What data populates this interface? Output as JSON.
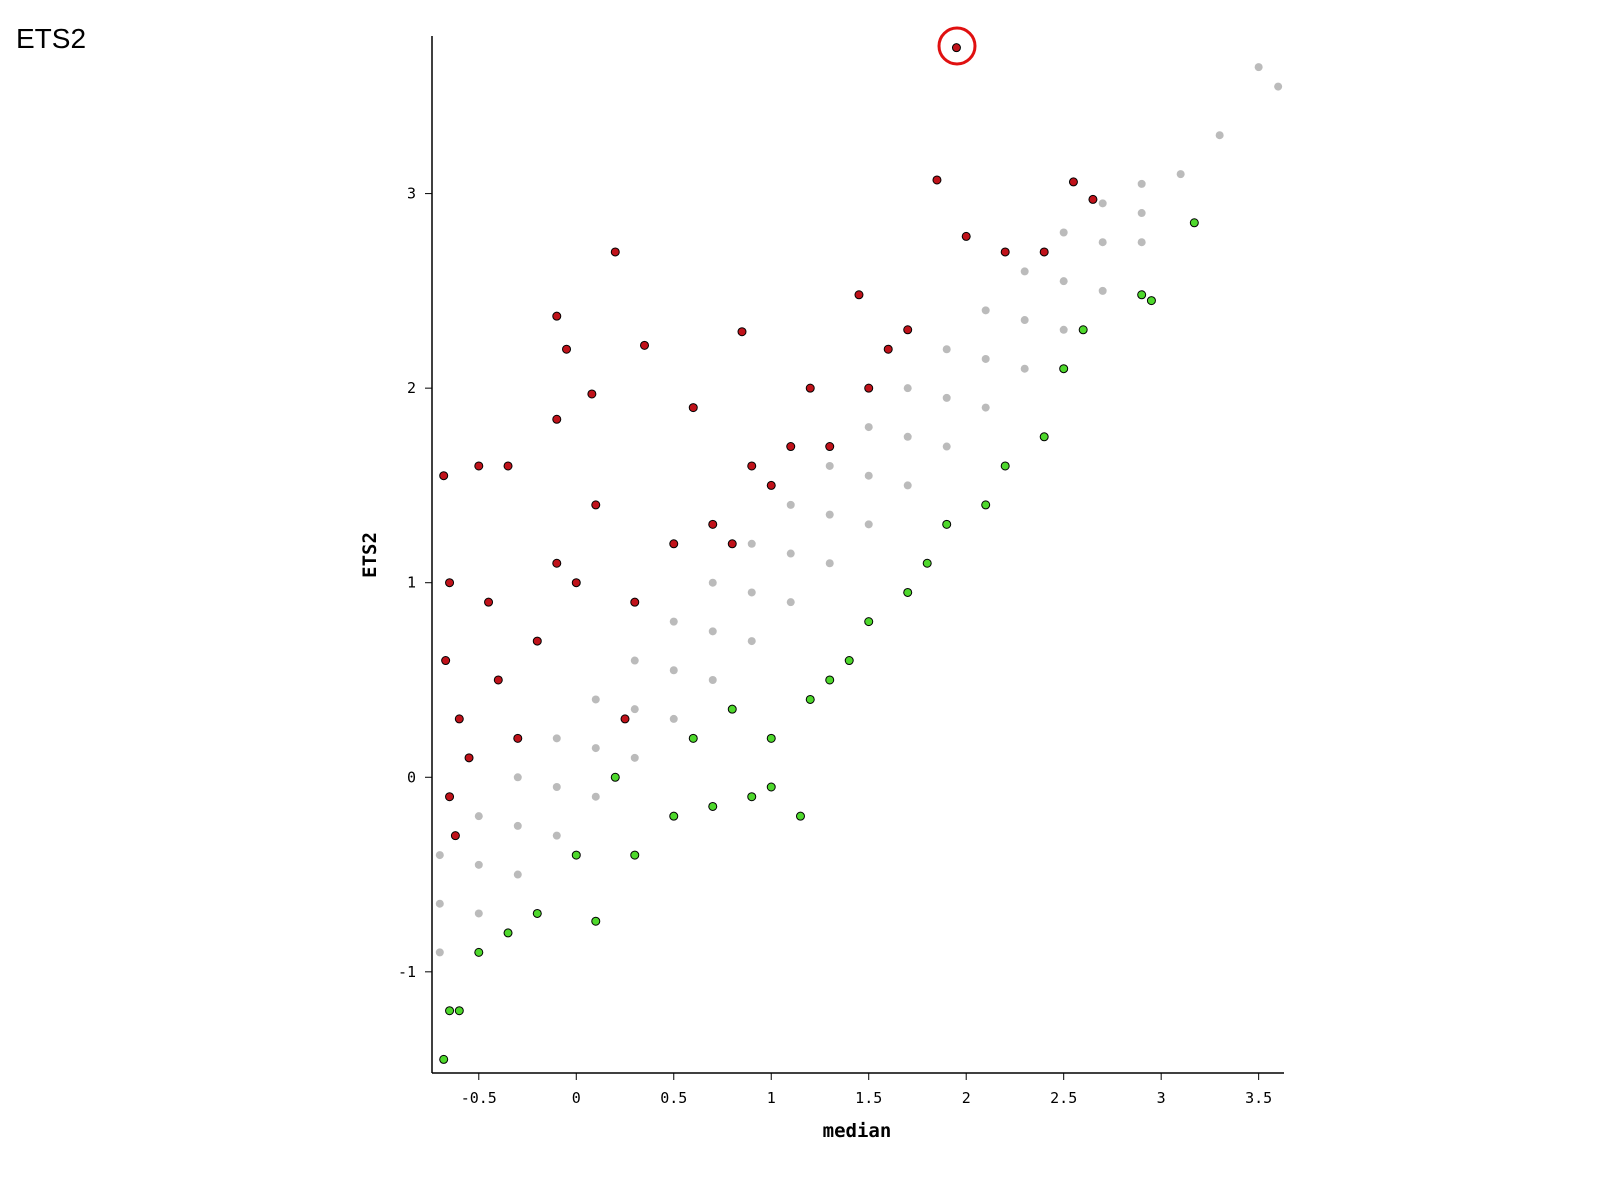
{
  "chart_data": {
    "type": "scatter",
    "title": "ETS2",
    "xlabel": "median",
    "ylabel": "ETS2",
    "xlim": [
      -0.74,
      3.63
    ],
    "ylim": [
      -1.52,
      3.81
    ],
    "xticks": [
      -0.5,
      0,
      0.5,
      1,
      1.5,
      2,
      2.5,
      3,
      3.5
    ],
    "yticks": [
      -1,
      0,
      1,
      2,
      3
    ],
    "series": [
      {
        "color": "#bbbbbb",
        "x": [
          -0.7,
          -0.7,
          -0.7,
          -0.5,
          -0.5,
          -0.5,
          -0.3,
          -0.3,
          -0.3,
          -0.1,
          -0.1,
          -0.1,
          0.1,
          0.1,
          0.1,
          0.3,
          0.3,
          0.3,
          0.5,
          0.5,
          0.5,
          0.7,
          0.7,
          0.7,
          0.9,
          0.9,
          0.9,
          1.1,
          1.1,
          1.1,
          1.3,
          1.3,
          1.3,
          1.5,
          1.5,
          1.5,
          1.7,
          1.7,
          1.7,
          1.9,
          1.9,
          1.9,
          2.1,
          2.1,
          2.1,
          2.3,
          2.3,
          2.3,
          2.5,
          2.5,
          2.5,
          2.7,
          2.7,
          2.7,
          2.9,
          2.9,
          2.9,
          3.1,
          3.3,
          3.5,
          3.6
        ],
        "values": [
          -0.9,
          -0.65,
          -0.4,
          -0.7,
          -0.45,
          -0.2,
          -0.5,
          -0.25,
          0,
          -0.3,
          -0.05,
          0.2,
          -0.1,
          0.15,
          0.4,
          0.1,
          0.35,
          0.6,
          0.3,
          0.55,
          0.8,
          0.5,
          0.75,
          1.0,
          0.7,
          0.95,
          1.2,
          0.9,
          1.15,
          1.4,
          1.1,
          1.35,
          1.6,
          1.3,
          1.55,
          1.8,
          1.5,
          1.75,
          2.0,
          1.7,
          1.95,
          2.2,
          1.9,
          2.15,
          2.4,
          2.1,
          2.35,
          2.6,
          2.3,
          2.55,
          2.8,
          2.5,
          2.75,
          2.95,
          2.75,
          2.9,
          3.05,
          3.1,
          3.3,
          3.65,
          3.55
        ]
      },
      {
        "color": "#c0121a",
        "x": [
          -0.68,
          -0.65,
          -0.67,
          -0.6,
          -0.65,
          -0.62,
          -0.5,
          -0.45,
          -0.4,
          -0.35,
          -0.3,
          -0.2,
          -0.1,
          0.0,
          0.1,
          0.2,
          0.3,
          0.35,
          -0.1,
          -0.05,
          -0.1,
          0.08,
          0.5,
          0.6,
          0.7,
          0.85,
          0.9,
          1.0,
          1.2,
          1.3,
          1.45,
          1.5,
          1.7,
          1.85,
          1.95,
          2.0,
          2.2,
          2.4,
          2.55,
          2.65,
          -0.55,
          0.25,
          0.8,
          1.1,
          1.6
        ],
        "values": [
          1.55,
          1.0,
          0.6,
          0.3,
          -0.1,
          -0.3,
          1.6,
          0.9,
          0.5,
          1.6,
          0.2,
          0.7,
          1.1,
          1.0,
          1.4,
          2.7,
          0.9,
          2.22,
          2.37,
          2.2,
          1.84,
          1.97,
          1.2,
          1.9,
          1.3,
          2.29,
          1.6,
          1.5,
          2.0,
          1.7,
          2.48,
          2.0,
          2.3,
          3.07,
          3.75,
          2.78,
          2.7,
          2.7,
          3.06,
          2.97,
          0.1,
          0.3,
          1.2,
          1.7,
          2.2
        ]
      },
      {
        "color": "#4ed82c",
        "x": [
          -0.68,
          -0.65,
          -0.6,
          -0.5,
          -0.35,
          -0.2,
          0.1,
          0.0,
          0.3,
          0.5,
          0.7,
          0.9,
          1.0,
          1.15,
          1.0,
          1.2,
          1.4,
          1.5,
          1.7,
          1.9,
          2.1,
          2.2,
          2.4,
          2.5,
          2.6,
          2.9,
          2.95,
          3.17,
          0.2,
          0.6,
          0.8,
          1.3,
          1.8
        ],
        "values": [
          -1.45,
          -1.2,
          -1.2,
          -0.9,
          -0.8,
          -0.7,
          -0.74,
          -0.4,
          -0.4,
          -0.2,
          -0.15,
          -0.1,
          -0.05,
          -0.2,
          0.2,
          0.4,
          0.6,
          0.8,
          0.95,
          1.3,
          1.4,
          1.6,
          1.75,
          2.1,
          2.3,
          2.48,
          2.45,
          2.85,
          0.0,
          0.2,
          0.35,
          0.5,
          1.1
        ]
      }
    ]
  }
}
